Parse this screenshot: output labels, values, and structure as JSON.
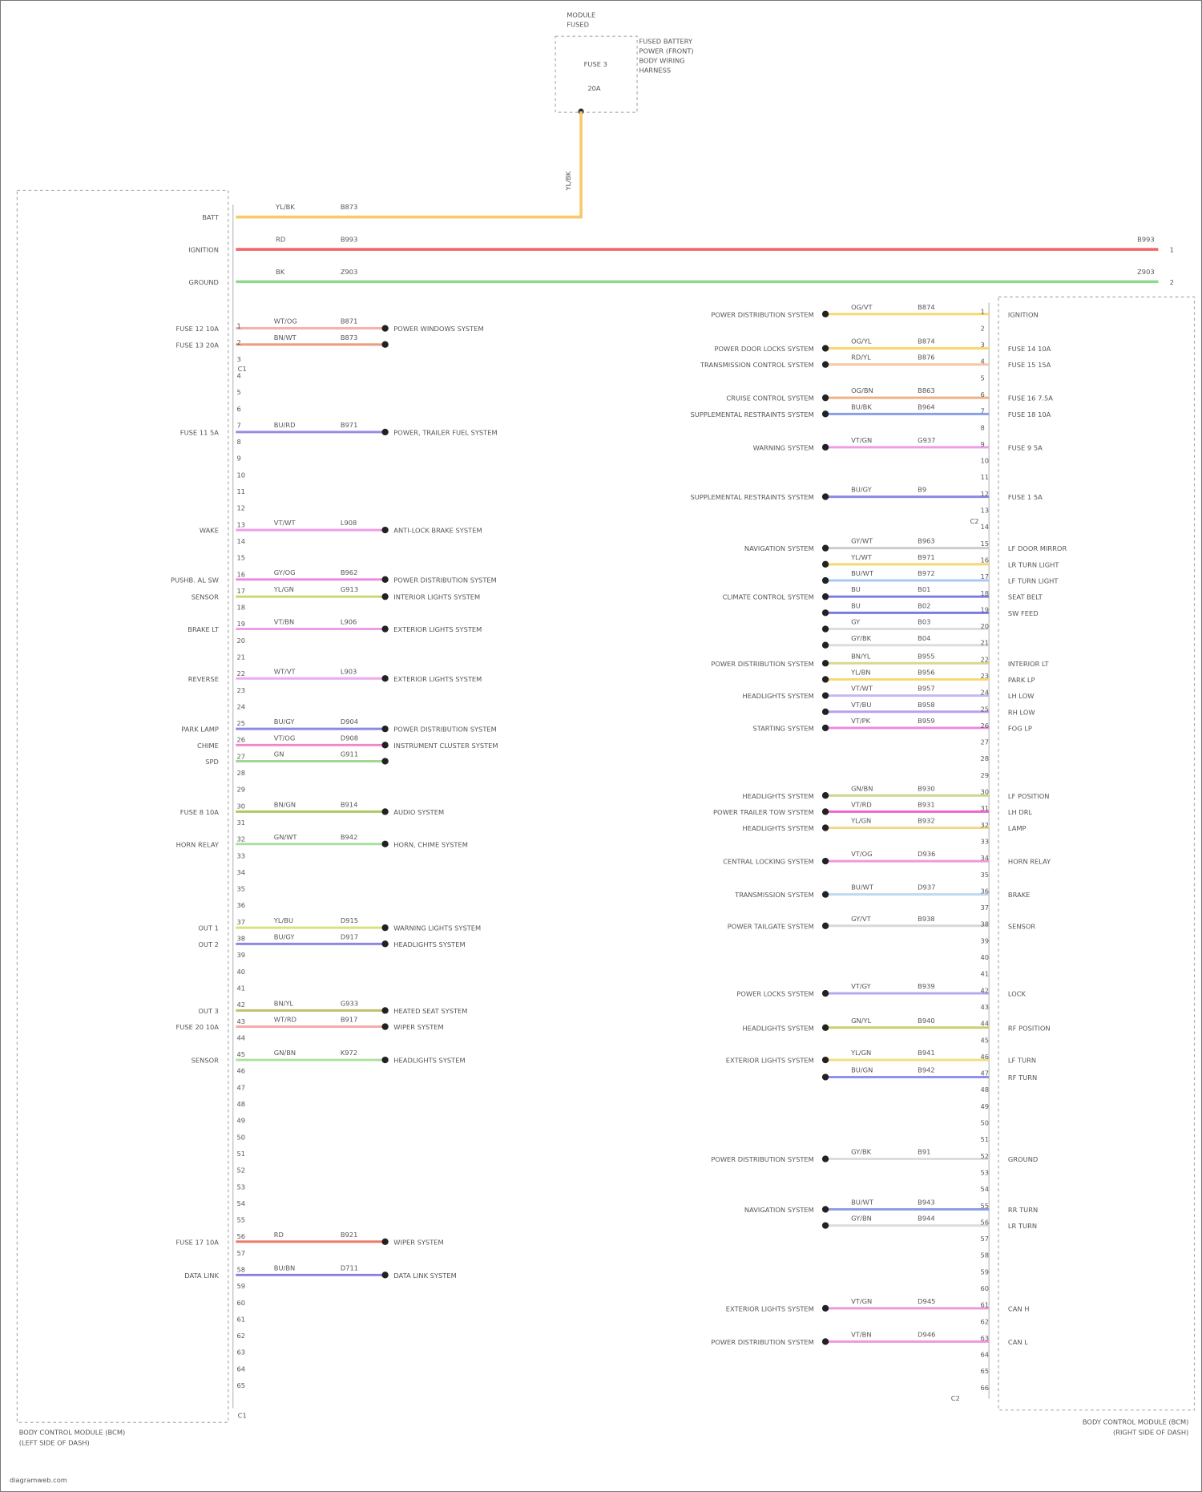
{
  "fuse_block": {
    "title": "MODULE\nFUSED",
    "desc": [
      "FUSED BATTERY",
      "POWER (FRONT)",
      "BODY WIRING",
      "HARNESS"
    ],
    "fuse": "FUSE 3",
    "amps": "20A",
    "wire": "YL/BK"
  },
  "left_module": {
    "title": "BODY CONTROL MODULE (BCM)",
    "subtitle": "(LEFT SIDE OF DASH)",
    "connector": "C1",
    "connector_bottom": "C1"
  },
  "right_module": {
    "title": "BODY CONTROL MODULE (BCM)",
    "subtitle": "(RIGHT SIDE OF DASH)",
    "connector": "C2",
    "connector_bottom": "C2"
  },
  "main_wires": [
    {
      "pin": "BATT",
      "color_code": "YL/BK",
      "circuit": "B873",
      "color": "#f7c96a",
      "end": "1"
    },
    {
      "pin": "IGNITION",
      "color_code": "RD",
      "circuit": "B993",
      "color": "#f06a6a",
      "end": "1"
    },
    {
      "pin": "GROUND",
      "color_code": "BK",
      "circuit": "Z903",
      "color": "#8fd88f",
      "end": "2"
    }
  ],
  "left_wires": [
    {
      "pin": "FUSE 12 10A",
      "color_code": "WT/OG",
      "circuit": "B871",
      "dest": "POWER WINDOWS SYSTEM",
      "color": "#f7b0b0"
    },
    {
      "pin": "FUSE 13 20A",
      "color_code": "BN/WT",
      "circuit": "B873",
      "dest": "",
      "color": "#eaa080"
    },
    {
      "pin": "FUSE 11 5A",
      "color_code": "BU/RD",
      "circuit": "B971",
      "dest": "POWER, TRAILER FUEL SYSTEM",
      "color": "#9a8ae6"
    },
    {
      "pin": "WAKE",
      "color_code": "VT/WT",
      "circuit": "L908",
      "dest": "ANTI-LOCK BRAKE SYSTEM",
      "color": "#ee9ee6"
    },
    {
      "pin": "PUSHB. AL SW",
      "color_code": "GY/OG",
      "circuit": "B962",
      "dest": "POWER DISTRIBUTION SYSTEM",
      "color": "#ee88dd"
    },
    {
      "pin": "SENSOR",
      "color_code": "YL/GN",
      "circuit": "G913",
      "dest": "INTERIOR LIGHTS SYSTEM",
      "color": "#c8d870"
    },
    {
      "pin": "BRAKE LT",
      "color_code": "VT/BN",
      "circuit": "L906",
      "dest": "EXTERIOR LIGHTS SYSTEM",
      "color": "#ee9ee6"
    },
    {
      "pin": "REVERSE",
      "color_code": "WT/VT",
      "circuit": "L903",
      "dest": "EXTERIOR LIGHTS SYSTEM",
      "color": "#eeaaee"
    },
    {
      "pin": "PARK LAMP",
      "color_code": "BU/GY",
      "circuit": "D904",
      "dest": "POWER DISTRIBUTION SYSTEM",
      "color": "#8a8ae6"
    },
    {
      "pin": "CHIME",
      "color_code": "VT/OG",
      "circuit": "D908",
      "dest": "INSTRUMENT CLUSTER SYSTEM",
      "color": "#ee88cc"
    },
    {
      "pin": "SPD",
      "color_code": "GN",
      "circuit": "G911",
      "dest": "",
      "color": "#a0d890"
    },
    {
      "pin": "FUSE 8 10A",
      "color_code": "BN/GN",
      "circuit": "B914",
      "dest": "AUDIO SYSTEM",
      "color": "#b0c860"
    },
    {
      "pin": "HORN RELAY",
      "color_code": "GN/WT",
      "circuit": "B942",
      "dest": "HORN, CHIME SYSTEM",
      "color": "#a8e0a0"
    },
    {
      "pin": "OUT 1",
      "color_code": "YL/BU",
      "circuit": "D915",
      "dest": "WARNING LIGHTS SYSTEM",
      "color": "#d8e080"
    },
    {
      "pin": "OUT 2",
      "color_code": "BU/GY",
      "circuit": "D917",
      "dest": "HEADLIGHTS SYSTEM",
      "color": "#8a8ae6"
    },
    {
      "pin": "OUT 3",
      "color_code": "BN/YL",
      "circuit": "G933",
      "dest": "HEATED SEAT SYSTEM",
      "color": "#c0c070"
    },
    {
      "pin": "FUSE 20 10A",
      "color_code": "WT/RD",
      "circuit": "B917",
      "dest": "WIPER SYSTEM",
      "color": "#f4aaaa"
    },
    {
      "pin": "SENSOR",
      "color_code": "GN/BN",
      "circuit": "K972",
      "dest": "HEADLIGHTS SYSTEM",
      "color": "#b0e0a0"
    },
    {
      "pin": "FUSE 17 10A",
      "color_code": "RD",
      "circuit": "B921",
      "dest": "WIPER SYSTEM",
      "color": "#f07a6a"
    },
    {
      "pin": "DATA LINK",
      "color_code": "BU/BN",
      "circuit": "D711",
      "dest": "DATA LINK SYSTEM",
      "color": "#8a80e0"
    }
  ],
  "right_wires": [
    {
      "source": "POWER DISTRIBUTION SYSTEM",
      "color_code": "OG/VT",
      "circuit": "B874",
      "pin": "IGNITION",
      "color": "#f7d870"
    },
    {
      "source": "POWER DOOR LOCKS SYSTEM",
      "color_code": "OG/YL",
      "circuit": "B874",
      "pin": "FUSE 14 10A",
      "color": "#f7d870"
    },
    {
      "source": "TRANSMISSION CONTROL SYSTEM",
      "color_code": "RD/YL",
      "circuit": "B876",
      "pin": "FUSE 15 15A",
      "color": "#f4c8a8"
    },
    {
      "source": "CRUISE CONTROL SYSTEM",
      "color_code": "OG/BN",
      "circuit": "B863",
      "pin": "FUSE 16 7.5A",
      "color": "#f0b080"
    },
    {
      "source": "SUPPLEMENTAL RESTRAINTS SYSTEM",
      "color_code": "BU/BK",
      "circuit": "B964",
      "pin": "FUSE 18 10A",
      "color": "#8aa0e6"
    },
    {
      "source": "WARNING SYSTEM",
      "color_code": "VT/GN",
      "circuit": "G937",
      "pin": "FUSE 9 5A",
      "color": "#ee9ee6"
    },
    {
      "source": "SUPPLEMENTAL RESTRAINTS SYSTEM",
      "color_code": "BU/GY",
      "circuit": "B9",
      "pin": "FUSE 1 5A",
      "color": "#8a8ae6"
    },
    {
      "source": "NAVIGATION SYSTEM",
      "color_code": "GY/WT",
      "circuit": "B963",
      "pin": "LF DOOR MIRROR",
      "color": "#cccccc"
    },
    {
      "source": "",
      "color_code": "YL/WT",
      "circuit": "B971",
      "pin": "LR TURN LIGHT",
      "color": "#f7d870"
    },
    {
      "source": "",
      "color_code": "BU/WT",
      "circuit": "B972",
      "pin": "LF TURN LIGHT",
      "color": "#a8c8f0"
    },
    {
      "source": "CLIMATE CONTROL SYSTEM",
      "color_code": "BU",
      "circuit": "B01",
      "pin": "SEAT BELT",
      "color": "#7a7ae6"
    },
    {
      "source": "",
      "color_code": "BU",
      "circuit": "B02",
      "pin": "SW FEED",
      "color": "#7a7ae6"
    },
    {
      "source": "",
      "color_code": "GY",
      "circuit": "B03",
      "pin": "",
      "color": "#dddddd"
    },
    {
      "source": "",
      "color_code": "GY/BK",
      "circuit": "B04",
      "pin": "",
      "color": "#dddddd"
    },
    {
      "source": "POWER DISTRIBUTION SYSTEM",
      "color_code": "BN/YL",
      "circuit": "B955",
      "pin": "INTERIOR LT",
      "color": "#d8d890"
    },
    {
      "source": "",
      "color_code": "YL/BN",
      "circuit": "B956",
      "pin": "PARK LP",
      "color": "#f7d870"
    },
    {
      "source": "HEADLIGHTS SYSTEM",
      "color_code": "VT/WT",
      "circuit": "B957",
      "pin": "LH LOW",
      "color": "#c8b8f0"
    },
    {
      "source": "",
      "color_code": "VT/BU",
      "circuit": "B958",
      "pin": "RH LOW",
      "color": "#b8a0f0"
    },
    {
      "source": "STARTING SYSTEM",
      "color_code": "VT/PK",
      "circuit": "B959",
      "pin": "FOG LP",
      "color": "#ee88dd"
    },
    {
      "source": "HEADLIGHTS SYSTEM",
      "color_code": "GN/BN",
      "circuit": "B930",
      "pin": "LF POSITION",
      "color": "#c8d890"
    },
    {
      "source": "POWER TRAILER TOW SYSTEM",
      "color_code": "VT/RD",
      "circuit": "B931",
      "pin": "LH DRL",
      "color": "#ee66cc"
    },
    {
      "source": "HEADLIGHTS SYSTEM",
      "color_code": "YL/GN",
      "circuit": "B932",
      "pin": "LAMP",
      "color": "#f0d880"
    },
    {
      "source": "CENTRAL LOCKING SYSTEM",
      "color_code": "VT/OG",
      "circuit": "D936",
      "pin": "HORN RELAY",
      "color": "#ee99dd"
    },
    {
      "source": "TRANSMISSION SYSTEM",
      "color_code": "BU/WT",
      "circuit": "D937",
      "pin": "BRAKE",
      "color": "#c0d8f0"
    },
    {
      "source": "POWER TAILGATE SYSTEM",
      "color_code": "GY/VT",
      "circuit": "B938",
      "pin": "SENSOR",
      "color": "#d8d8d8"
    },
    {
      "source": "POWER LOCKS SYSTEM",
      "color_code": "VT/GY",
      "circuit": "B939",
      "pin": "LOCK",
      "color": "#b8a8f0"
    },
    {
      "source": "HEADLIGHTS SYSTEM",
      "color_code": "GN/YL",
      "circuit": "B940",
      "pin": "RF POSITION",
      "color": "#c8d070"
    },
    {
      "source": "EXTERIOR LIGHTS SYSTEM",
      "color_code": "YL/GN",
      "circuit": "B941",
      "pin": "LF TURN",
      "color": "#f0e080"
    },
    {
      "source": "",
      "color_code": "BU/GN",
      "circuit": "B942",
      "pin": "RF TURN",
      "color": "#9090ee"
    },
    {
      "source": "POWER DISTRIBUTION SYSTEM",
      "color_code": "GY/BK",
      "circuit": "B91",
      "pin": "GROUND",
      "color": "#dddddd"
    },
    {
      "source": "NAVIGATION SYSTEM",
      "color_code": "BU/WT",
      "circuit": "B943",
      "pin": "RR TURN",
      "color": "#8a9ae6"
    },
    {
      "source": "",
      "color_code": "GY/BN",
      "circuit": "B944",
      "pin": "LR TURN",
      "color": "#dddddd"
    },
    {
      "source": "EXTERIOR LIGHTS SYSTEM",
      "color_code": "VT/GN",
      "circuit": "D945",
      "pin": "CAN H",
      "color": "#ee99dd"
    },
    {
      "source": "POWER DISTRIBUTION SYSTEM",
      "color_code": "VT/BN",
      "circuit": "D946",
      "pin": "CAN L",
      "color": "#ee99dd"
    }
  ],
  "footer": "diagramweb.com"
}
